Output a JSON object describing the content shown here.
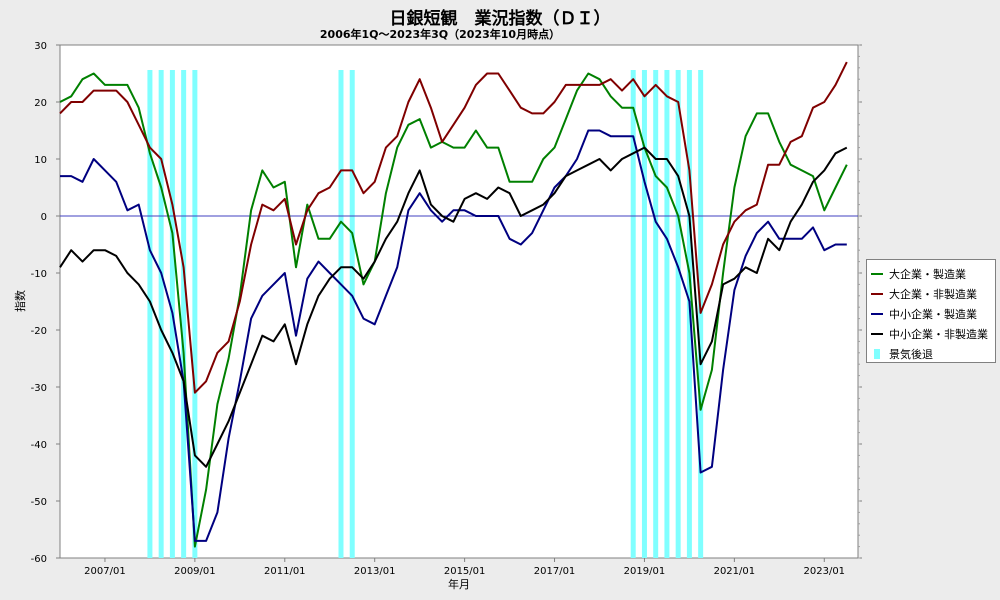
{
  "chart_data": {
    "type": "line",
    "title": "日銀短観　業況指数（ＤＩ）",
    "subtitle": "2006年1Q～2023年3Q（2023年10月時点）",
    "xlabel": "年月",
    "ylabel": "指数",
    "ylim": [
      -60,
      30
    ],
    "yticks": [
      30,
      20,
      10,
      0,
      -10,
      -20,
      -30,
      -40,
      -50,
      -60
    ],
    "xlim": [
      "2006/01",
      "2023/10"
    ],
    "xticks": [
      "2007/01",
      "2009/01",
      "2011/01",
      "2013/01",
      "2015/01",
      "2017/01",
      "2019/01",
      "2021/01",
      "2023/01"
    ],
    "x_start": "2006/01",
    "zero_line": true,
    "legend_position": "right",
    "series": [
      {
        "name": "大企業・製造業",
        "color": "#008000",
        "values": [
          20,
          21,
          24,
          25,
          23,
          23,
          23,
          19,
          11,
          5,
          -3,
          -24,
          -58,
          -48,
          -33,
          -25,
          -14,
          1,
          8,
          5,
          6,
          -9,
          2,
          -4,
          -4,
          -1,
          -3,
          -12,
          -8,
          4,
          12,
          16,
          17,
          12,
          13,
          12,
          12,
          15,
          12,
          12,
          6,
          6,
          6,
          10,
          12,
          17,
          22,
          25,
          24,
          21,
          19,
          19,
          12,
          7,
          5,
          0,
          -10,
          -34,
          -27,
          -10,
          5,
          14,
          18,
          18,
          13,
          9,
          8,
          7,
          1,
          5,
          9
        ]
      },
      {
        "name": "大企業・非製造業",
        "color": "#800000",
        "values": [
          18,
          20,
          20,
          22,
          22,
          22,
          20,
          16,
          12,
          10,
          2,
          -9,
          -31,
          -29,
          -24,
          -22,
          -15,
          -5,
          2,
          1,
          3,
          -5,
          1,
          4,
          5,
          8,
          8,
          4,
          6,
          12,
          14,
          20,
          24,
          19,
          13,
          16,
          19,
          23,
          25,
          25,
          22,
          19,
          18,
          18,
          20,
          23,
          23,
          23,
          23,
          24,
          22,
          24,
          21,
          23,
          21,
          20,
          8,
          -17,
          -12,
          -5,
          -1,
          1,
          2,
          9,
          9,
          13,
          14,
          19,
          20,
          23,
          27
        ]
      },
      {
        "name": "中小企業・製造業",
        "color": "#000080",
        "values": [
          7,
          7,
          6,
          10,
          8,
          6,
          1,
          2,
          -6,
          -10,
          -17,
          -29,
          -57,
          -57,
          -52,
          -39,
          -29,
          -18,
          -14,
          -12,
          -10,
          -21,
          -11,
          -8,
          -10,
          -12,
          -14,
          -18,
          -19,
          -14,
          -9,
          1,
          4,
          1,
          -1,
          1,
          1,
          0,
          0,
          0,
          -4,
          -5,
          -3,
          1,
          5,
          7,
          10,
          15,
          15,
          14,
          14,
          14,
          6,
          -1,
          -4,
          -9,
          -15,
          -45,
          -44,
          -27,
          -13,
          -7,
          -3,
          -1,
          -4,
          -4,
          -4,
          -2,
          -6,
          -5,
          -5
        ]
      },
      {
        "name": "中小企業・非製造業",
        "color": "#000000",
        "values": [
          -9,
          -6,
          -8,
          -6,
          -6,
          -7,
          -10,
          -12,
          -15,
          -20,
          -24,
          -29,
          -42,
          -44,
          -40,
          -36,
          -31,
          -26,
          -21,
          -22,
          -19,
          -26,
          -19,
          -14,
          -11,
          -9,
          -9,
          -11,
          -8,
          -4,
          -1,
          4,
          8,
          2,
          0,
          -1,
          3,
          4,
          3,
          5,
          4,
          0,
          1,
          2,
          4,
          7,
          8,
          9,
          10,
          8,
          10,
          11,
          12,
          10,
          10,
          7,
          0,
          -26,
          -22,
          -12,
          -11,
          -9,
          -10,
          -4,
          -6,
          -1,
          2,
          6,
          8,
          11,
          12
        ]
      },
      {
        "name": "景気後退",
        "color": "#80ffff",
        "type": "band",
        "periods": [
          "2008/01",
          "2008/04",
          "2008/07",
          "2008/10",
          "2009/01",
          "2012/04",
          "2012/07",
          "2018/10",
          "2019/01",
          "2019/04",
          "2019/07",
          "2019/10",
          "2020/01",
          "2020/04"
        ]
      }
    ]
  }
}
